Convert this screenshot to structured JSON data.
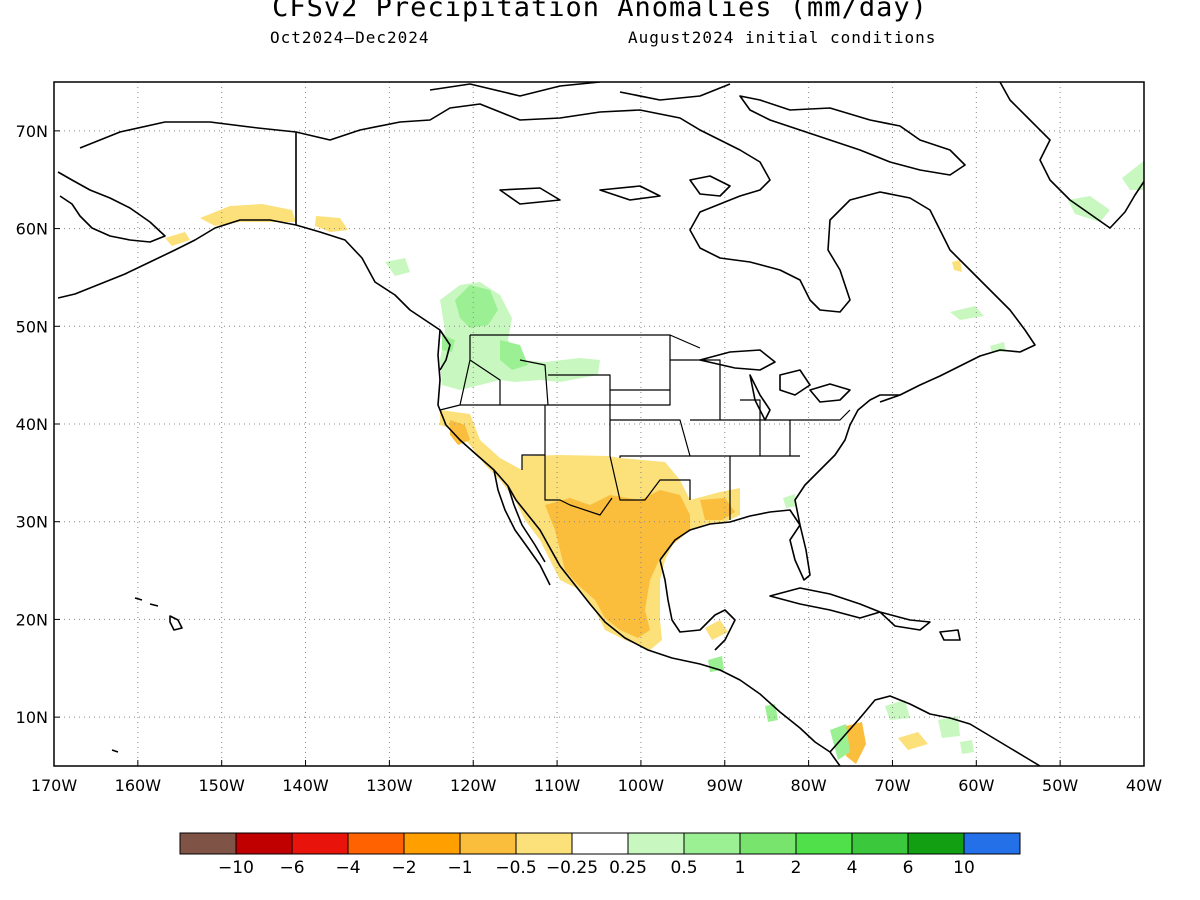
{
  "title": "CFSv2 Precipitation Anomalies (mm/day)",
  "period": "Oct2024–Dec2024",
  "init": "August2024 initial conditions",
  "lat_labels": [
    "70N",
    "60N",
    "50N",
    "40N",
    "30N",
    "20N",
    "10N"
  ],
  "lat_values": [
    70,
    60,
    50,
    40,
    30,
    20,
    10
  ],
  "lon_labels": [
    "170W",
    "160W",
    "150W",
    "140W",
    "130W",
    "120W",
    "110W",
    "100W",
    "90W",
    "80W",
    "70W",
    "60W",
    "50W",
    "40W"
  ],
  "lon_values": [
    -170,
    -160,
    -150,
    -140,
    -130,
    -120,
    -110,
    -100,
    -90,
    -80,
    -70,
    -60,
    -50,
    -40
  ],
  "map_extent": {
    "lon_min": -170,
    "lon_max": -40,
    "lat_min": 5,
    "lat_max": 75
  },
  "colorbar": {
    "colors": [
      "#7f5346",
      "#c00000",
      "#e8140c",
      "#ff6200",
      "#ffa000",
      "#fbbd3c",
      "#fce07a",
      "#ffffff",
      "#c8f8c0",
      "#9cf094",
      "#78e46e",
      "#4fe04a",
      "#3cc83c",
      "#12a012",
      "#2470e8"
    ],
    "tick_labels": [
      "−10",
      "−6",
      "−4",
      "−2",
      "−1",
      "−0.5",
      "−0.25",
      "0.25",
      "0.5",
      "1",
      "2",
      "4",
      "6",
      "10"
    ]
  },
  "colors": {
    "land_outline": "#000000",
    "grid": "#888888"
  }
}
